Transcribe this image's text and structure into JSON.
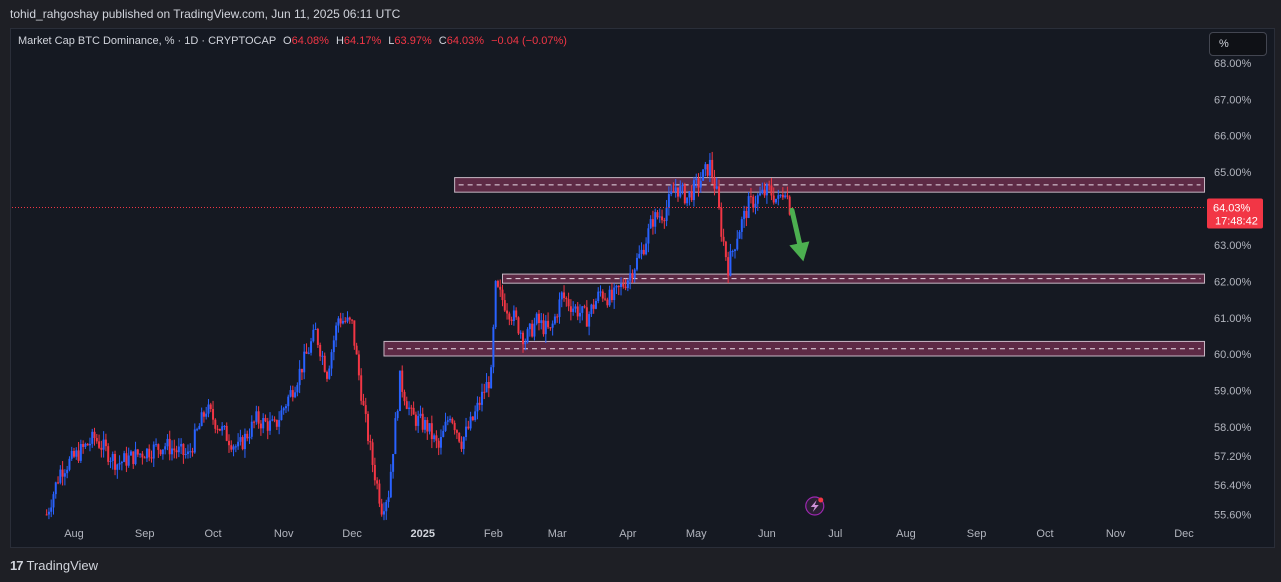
{
  "header": {
    "published_by": "tohid_rahgoshay published on TradingView.com, Jun 11, 2025 06:11 UTC"
  },
  "legend": {
    "symbol": "Market Cap BTC Dominance, % · 1D · CRYPTOCAP",
    "open_label": "O",
    "open": "64.08%",
    "high_label": "H",
    "high": "64.17%",
    "low_label": "L",
    "low": "63.97%",
    "close_label": "C",
    "close": "64.03%",
    "change": "−0.04 (−0.07%)"
  },
  "scale_button": {
    "label": "%"
  },
  "price_tag": {
    "price": "64.03%",
    "countdown": "17:48:42"
  },
  "footer": {
    "brand_mark": "17",
    "brand": "TradingView"
  },
  "colors": {
    "up": "#2962ff",
    "down": "#f23645",
    "zone_fill": "#5d2a45",
    "zone_border": "#c7b7c4",
    "arrow": "#4caf50",
    "price_line": "#f23645"
  },
  "icons": {
    "flash": "lightning-icon"
  },
  "chart_data": {
    "type": "candlestick",
    "y_axis": {
      "ticks": [
        "68.00%",
        "67.00%",
        "66.00%",
        "65.00%",
        "63.00%",
        "62.00%",
        "61.00%",
        "60.00%",
        "59.00%",
        "58.00%",
        "57.20%",
        "56.40%",
        "55.60%"
      ],
      "tick_values": [
        68.0,
        67.0,
        66.0,
        65.0,
        63.0,
        62.0,
        61.0,
        60.0,
        59.0,
        58.0,
        57.2,
        56.4,
        55.6
      ],
      "ylim": [
        55.5,
        68.3
      ]
    },
    "x_axis": {
      "ticks": [
        "Aug",
        "Sep",
        "Oct",
        "Nov",
        "Dec",
        "2025",
        "Feb",
        "Mar",
        "Apr",
        "May",
        "Jun",
        "Jul",
        "Aug",
        "Sep",
        "Oct",
        "Nov",
        "Dec"
      ],
      "tick_dates": [
        "2024-08-01",
        "2024-09-01",
        "2024-10-01",
        "2024-11-01",
        "2024-12-01",
        "2025-01-01",
        "2025-02-01",
        "2025-03-01",
        "2025-04-01",
        "2025-05-01",
        "2025-06-01",
        "2025-07-01",
        "2025-08-01",
        "2025-09-01",
        "2025-10-01",
        "2025-11-01",
        "2025-12-01"
      ],
      "bold_ticks": [
        "2025"
      ]
    },
    "last_price": 64.03,
    "zones": [
      {
        "from": "2025-01-15",
        "to": "2025-12-10",
        "low": 64.45,
        "high": 64.85
      },
      {
        "from": "2025-02-05",
        "to": "2025-12-10",
        "low": 61.95,
        "high": 62.2
      },
      {
        "from": "2024-12-15",
        "to": "2025-12-10",
        "low": 59.95,
        "high": 60.35
      }
    ],
    "arrow": {
      "from_date": "2025-06-12",
      "from_value": 63.95,
      "to_date": "2025-06-17",
      "to_value": 62.55
    },
    "path": [
      [
        "2024-07-20",
        55.6
      ],
      [
        "2024-07-26",
        56.8
      ],
      [
        "2024-08-05",
        57.4
      ],
      [
        "2024-08-10",
        57.7
      ],
      [
        "2024-08-20",
        57.0
      ],
      [
        "2024-08-31",
        57.3
      ],
      [
        "2024-09-10",
        57.5
      ],
      [
        "2024-09-20",
        57.2
      ],
      [
        "2024-09-28",
        58.5
      ],
      [
        "2024-10-05",
        57.9
      ],
      [
        "2024-10-12",
        57.4
      ],
      [
        "2024-10-20",
        58.2
      ],
      [
        "2024-10-28",
        58.0
      ],
      [
        "2024-11-06",
        59.2
      ],
      [
        "2024-11-15",
        60.6
      ],
      [
        "2024-11-20",
        59.5
      ],
      [
        "2024-11-25",
        61.0
      ],
      [
        "2024-12-01",
        60.8
      ],
      [
        "2024-12-06",
        58.5
      ],
      [
        "2024-12-10",
        57.0
      ],
      [
        "2024-12-14",
        55.8
      ],
      [
        "2024-12-17",
        56.2
      ],
      [
        "2024-12-22",
        59.3
      ],
      [
        "2024-12-27",
        58.3
      ],
      [
        "2025-01-03",
        58.0
      ],
      [
        "2025-01-08",
        57.4
      ],
      [
        "2025-01-13",
        58.4
      ],
      [
        "2025-01-18",
        57.6
      ],
      [
        "2025-01-23",
        58.2
      ],
      [
        "2025-01-28",
        59.0
      ],
      [
        "2025-01-31",
        59.4
      ],
      [
        "2025-02-02",
        61.8
      ],
      [
        "2025-02-05",
        61.5
      ],
      [
        "2025-02-10",
        61.0
      ],
      [
        "2025-02-15",
        60.4
      ],
      [
        "2025-02-20",
        60.9
      ],
      [
        "2025-02-26",
        60.6
      ],
      [
        "2025-03-03",
        61.6
      ],
      [
        "2025-03-08",
        61.3
      ],
      [
        "2025-03-14",
        61.0
      ],
      [
        "2025-03-20",
        61.7
      ],
      [
        "2025-03-25",
        61.5
      ],
      [
        "2025-04-01",
        62.1
      ],
      [
        "2025-04-07",
        62.8
      ],
      [
        "2025-04-12",
        63.7
      ],
      [
        "2025-04-17",
        63.9
      ],
      [
        "2025-04-22",
        64.6
      ],
      [
        "2025-04-27",
        64.3
      ],
      [
        "2025-05-02",
        64.7
      ],
      [
        "2025-05-07",
        65.2
      ],
      [
        "2025-05-10",
        64.4
      ],
      [
        "2025-05-12",
        63.4
      ],
      [
        "2025-05-15",
        62.4
      ],
      [
        "2025-05-19",
        63.3
      ],
      [
        "2025-05-24",
        64.1
      ],
      [
        "2025-05-28",
        64.3
      ],
      [
        "2025-06-02",
        64.5
      ],
      [
        "2025-06-06",
        64.2
      ],
      [
        "2025-06-09",
        64.6
      ],
      [
        "2025-06-11",
        64.03
      ]
    ]
  }
}
